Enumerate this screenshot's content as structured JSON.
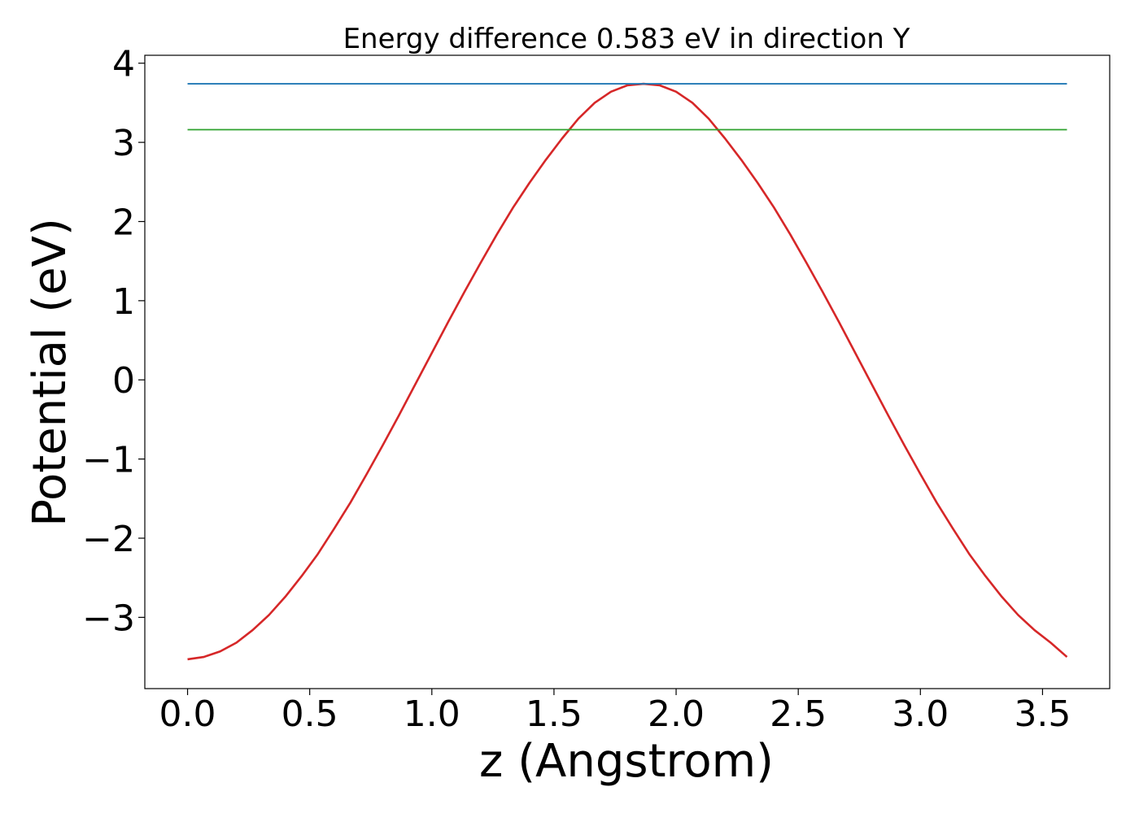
{
  "chart_data": {
    "type": "line",
    "title": "Energy difference 0.583 eV in direction Y",
    "xlabel": "z (Angstrom)",
    "ylabel": "Potential (eV)",
    "xlim": [
      -0.175,
      3.775
    ],
    "ylim": [
      -3.9,
      4.1
    ],
    "xticks": [
      0.0,
      0.5,
      1.0,
      1.5,
      2.0,
      2.5,
      3.0,
      3.5
    ],
    "xtick_labels": [
      "0.0",
      "0.5",
      "1.0",
      "1.5",
      "2.0",
      "2.5",
      "3.0",
      "3.5"
    ],
    "yticks": [
      -3,
      -2,
      -1,
      0,
      1,
      2,
      3,
      4
    ],
    "ytick_labels": [
      "−3",
      "−2",
      "−1",
      "0",
      "1",
      "2",
      "3",
      "4"
    ],
    "grid": false,
    "legend": "none",
    "series": [
      {
        "color": "#d62728",
        "style": "curve",
        "x": [
          0.0,
          0.0667,
          0.1333,
          0.2,
          0.2667,
          0.3333,
          0.4,
          0.4667,
          0.5333,
          0.6,
          0.6667,
          0.7333,
          0.8,
          0.8667,
          0.9333,
          1.0,
          1.0667,
          1.1333,
          1.2,
          1.2667,
          1.3333,
          1.4,
          1.4667,
          1.5333,
          1.6,
          1.6667,
          1.7333,
          1.8,
          1.8667,
          1.9333,
          2.0,
          2.0667,
          2.1333,
          2.2,
          2.2667,
          2.3333,
          2.4,
          2.4667,
          2.5333,
          2.6,
          2.6667,
          2.7333,
          2.8,
          2.8667,
          2.9333,
          3.0,
          3.0667,
          3.1333,
          3.2,
          3.2667,
          3.3333,
          3.4,
          3.4667,
          3.5333,
          3.6
        ],
        "y": [
          -3.53,
          -3.5,
          -3.43,
          -3.32,
          -3.16,
          -2.97,
          -2.74,
          -2.48,
          -2.2,
          -1.88,
          -1.55,
          -1.19,
          -0.82,
          -0.44,
          -0.05,
          0.34,
          0.73,
          1.11,
          1.48,
          1.84,
          2.18,
          2.49,
          2.78,
          3.05,
          3.3,
          3.5,
          3.64,
          3.72,
          3.74,
          3.72,
          3.64,
          3.5,
          3.3,
          3.05,
          2.78,
          2.49,
          2.18,
          1.84,
          1.48,
          1.11,
          0.73,
          0.34,
          -0.05,
          -0.44,
          -0.82,
          -1.19,
          -1.55,
          -1.88,
          -2.2,
          -2.48,
          -2.74,
          -2.97,
          -3.16,
          -3.32,
          -3.5
        ]
      },
      {
        "color": "#1f77b4",
        "style": "hline",
        "x": [
          0.0,
          3.6
        ],
        "y": [
          3.74,
          3.74
        ]
      },
      {
        "color": "#2ca02c",
        "style": "hline",
        "x": [
          0.0,
          3.6
        ],
        "y": [
          3.16,
          3.16
        ]
      }
    ]
  }
}
